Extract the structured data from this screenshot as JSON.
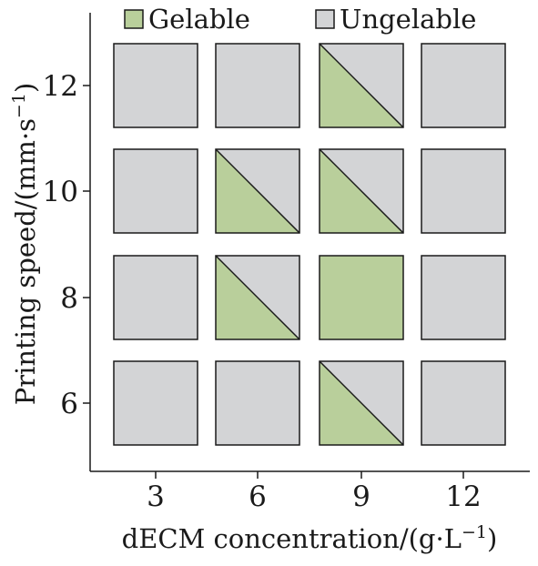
{
  "chart_data": {
    "type": "heatmap",
    "xlabel": "dECM concentration/(g·L",
    "xlabel_sup": "−1",
    "xlabel_end": ")",
    "ylabel": "Printing speed/(mm·s",
    "ylabel_sup": "−1",
    "ylabel_end": ")",
    "x_categories": [
      "3",
      "6",
      "9",
      "12"
    ],
    "y_categories": [
      "6",
      "8",
      "10",
      "12"
    ],
    "legend_position": "top",
    "legend": [
      {
        "key": "gelable",
        "label": "Gelable",
        "color": "#b9cf9b"
      },
      {
        "key": "ungelable",
        "label": "Ungelable",
        "color": "#d3d4d6"
      }
    ],
    "cells": [
      {
        "x": "3",
        "y": "12",
        "state": "ungelable"
      },
      {
        "x": "6",
        "y": "12",
        "state": "ungelable"
      },
      {
        "x": "9",
        "y": "12",
        "state": "partial"
      },
      {
        "x": "12",
        "y": "12",
        "state": "ungelable"
      },
      {
        "x": "3",
        "y": "10",
        "state": "ungelable"
      },
      {
        "x": "6",
        "y": "10",
        "state": "partial"
      },
      {
        "x": "9",
        "y": "10",
        "state": "partial"
      },
      {
        "x": "12",
        "y": "10",
        "state": "ungelable"
      },
      {
        "x": "3",
        "y": "8",
        "state": "ungelable"
      },
      {
        "x": "6",
        "y": "8",
        "state": "partial"
      },
      {
        "x": "9",
        "y": "8",
        "state": "gelable"
      },
      {
        "x": "12",
        "y": "8",
        "state": "ungelable"
      },
      {
        "x": "3",
        "y": "6",
        "state": "ungelable"
      },
      {
        "x": "6",
        "y": "6",
        "state": "ungelable"
      },
      {
        "x": "9",
        "y": "6",
        "state": "partial"
      },
      {
        "x": "12",
        "y": "6",
        "state": "ungelable"
      }
    ]
  }
}
